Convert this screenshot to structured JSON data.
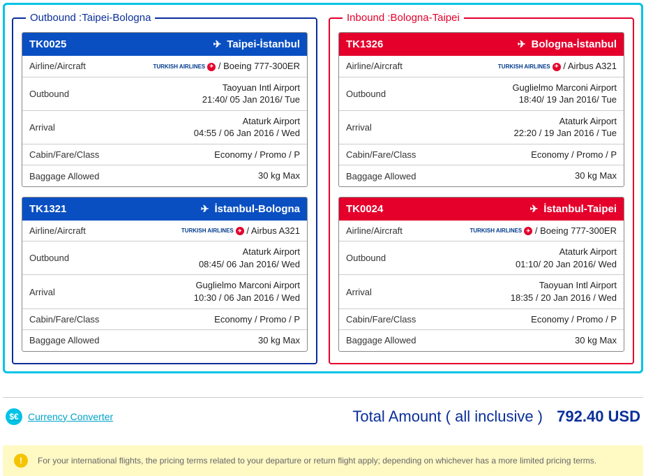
{
  "colors": {
    "frame": "#00c3e6",
    "outbound": "#0a2f9a",
    "outbound_head": "#0a4fc2",
    "inbound": "#e4002b",
    "total_text": "#0a2f9a"
  },
  "labels": {
    "airline_aircraft": "Airline/Aircraft",
    "outbound": "Outbound",
    "arrival": "Arrival",
    "cabin": "Cabin/Fare/Class",
    "baggage": "Baggage Allowed"
  },
  "airline_brand_text": "TURKISH AIRLINES",
  "outbound": {
    "legend": "Outbound :Taipei-Bologna",
    "flights": [
      {
        "code": "TK0025",
        "route": "Taipei-İstanbul",
        "aircraft": "/ Boeing 777-300ER",
        "dep_airport": "Taoyuan Intl Airport",
        "dep_time": "21:40/ 05 Jan 2016/ Tue",
        "arr_airport": "Ataturk Airport",
        "arr_time": "04:55 / 06 Jan 2016 / Wed",
        "cabin": "Economy / Promo / P",
        "baggage": "30 kg Max"
      },
      {
        "code": "TK1321",
        "route": "İstanbul-Bologna",
        "aircraft": "/ Airbus A321",
        "dep_airport": "Ataturk Airport",
        "dep_time": "08:45/ 06 Jan 2016/ Wed",
        "arr_airport": "Guglielmo Marconi Airport",
        "arr_time": "10:30 / 06 Jan 2016 / Wed",
        "cabin": "Economy / Promo / P",
        "baggage": "30 kg Max"
      }
    ]
  },
  "inbound": {
    "legend": "Inbound :Bologna-Taipei",
    "flights": [
      {
        "code": "TK1326",
        "route": "Bologna-İstanbul",
        "aircraft": "/ Airbus A321",
        "dep_airport": "Guglielmo Marconi Airport",
        "dep_time": "18:40/ 19 Jan 2016/ Tue",
        "arr_airport": "Ataturk Airport",
        "arr_time": "22:20 / 19 Jan 2016 / Tue",
        "cabin": "Economy / Promo / P",
        "baggage": "30 kg Max"
      },
      {
        "code": "TK0024",
        "route": "İstanbul-Taipei",
        "aircraft": "/ Boeing 777-300ER",
        "dep_airport": "Ataturk Airport",
        "dep_time": "01:10/ 20 Jan 2016/ Wed",
        "arr_airport": "Taoyuan Intl Airport",
        "arr_time": "18:35 / 20 Jan 2016 / Wed",
        "cabin": "Economy / Promo / P",
        "baggage": "30 kg Max"
      }
    ]
  },
  "currency_converter_label": "Currency Converter",
  "total_label": "Total Amount ( all inclusive )",
  "total_amount": "792.40 USD",
  "notice_text": "For your international flights, the pricing terms related to your departure or return flight apply; depending on whichever has a more limited pricing terms."
}
